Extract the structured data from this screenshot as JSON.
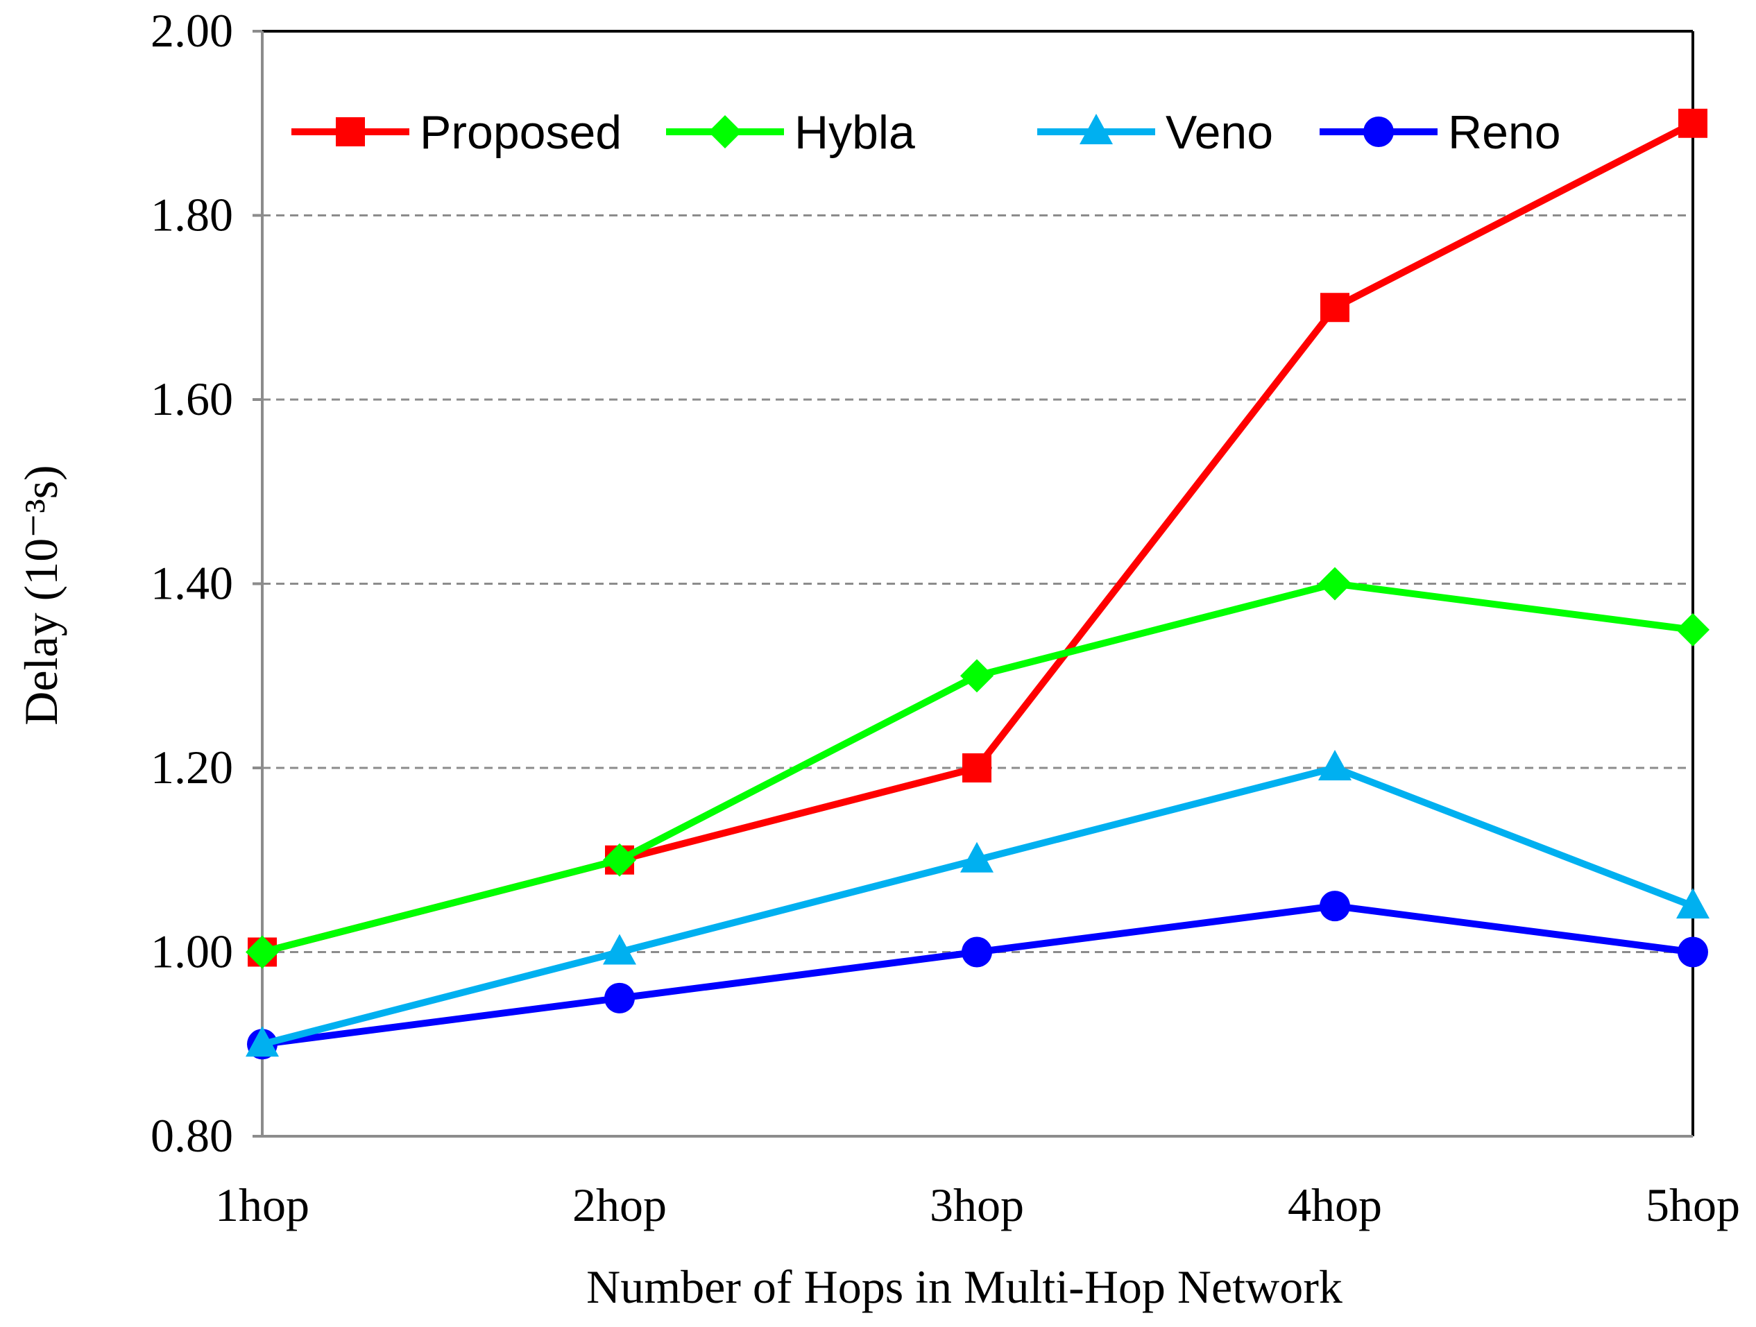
{
  "chart_data": {
    "type": "line",
    "title": "",
    "xlabel": "Number of Hops in Multi-Hop Network",
    "ylabel": "Delay (10⁻³s)",
    "categories": [
      "1hop",
      "2hop",
      "3hop",
      "4hop",
      "5hop"
    ],
    "ylim": [
      0.8,
      2.0
    ],
    "yticks": [
      "0.80",
      "1.00",
      "1.20",
      "1.40",
      "1.60",
      "1.80",
      "2.00"
    ],
    "grid": true,
    "legend_position": "top",
    "series": [
      {
        "name": "Proposed",
        "values": [
          1.0,
          1.1,
          1.2,
          1.7,
          1.9
        ],
        "color": "#ff0000",
        "marker": "square"
      },
      {
        "name": "Hybla",
        "values": [
          1.0,
          1.1,
          1.3,
          1.4,
          1.35
        ],
        "color": "#00ff00",
        "marker": "diamond"
      },
      {
        "name": "Veno",
        "values": [
          0.9,
          1.0,
          1.1,
          1.2,
          1.05
        ],
        "color": "#00b0f0",
        "marker": "triangle"
      },
      {
        "name": "Reno",
        "values": [
          0.9,
          0.95,
          1.0,
          1.05,
          1.0
        ],
        "color": "#0000ff",
        "marker": "circle"
      }
    ]
  }
}
